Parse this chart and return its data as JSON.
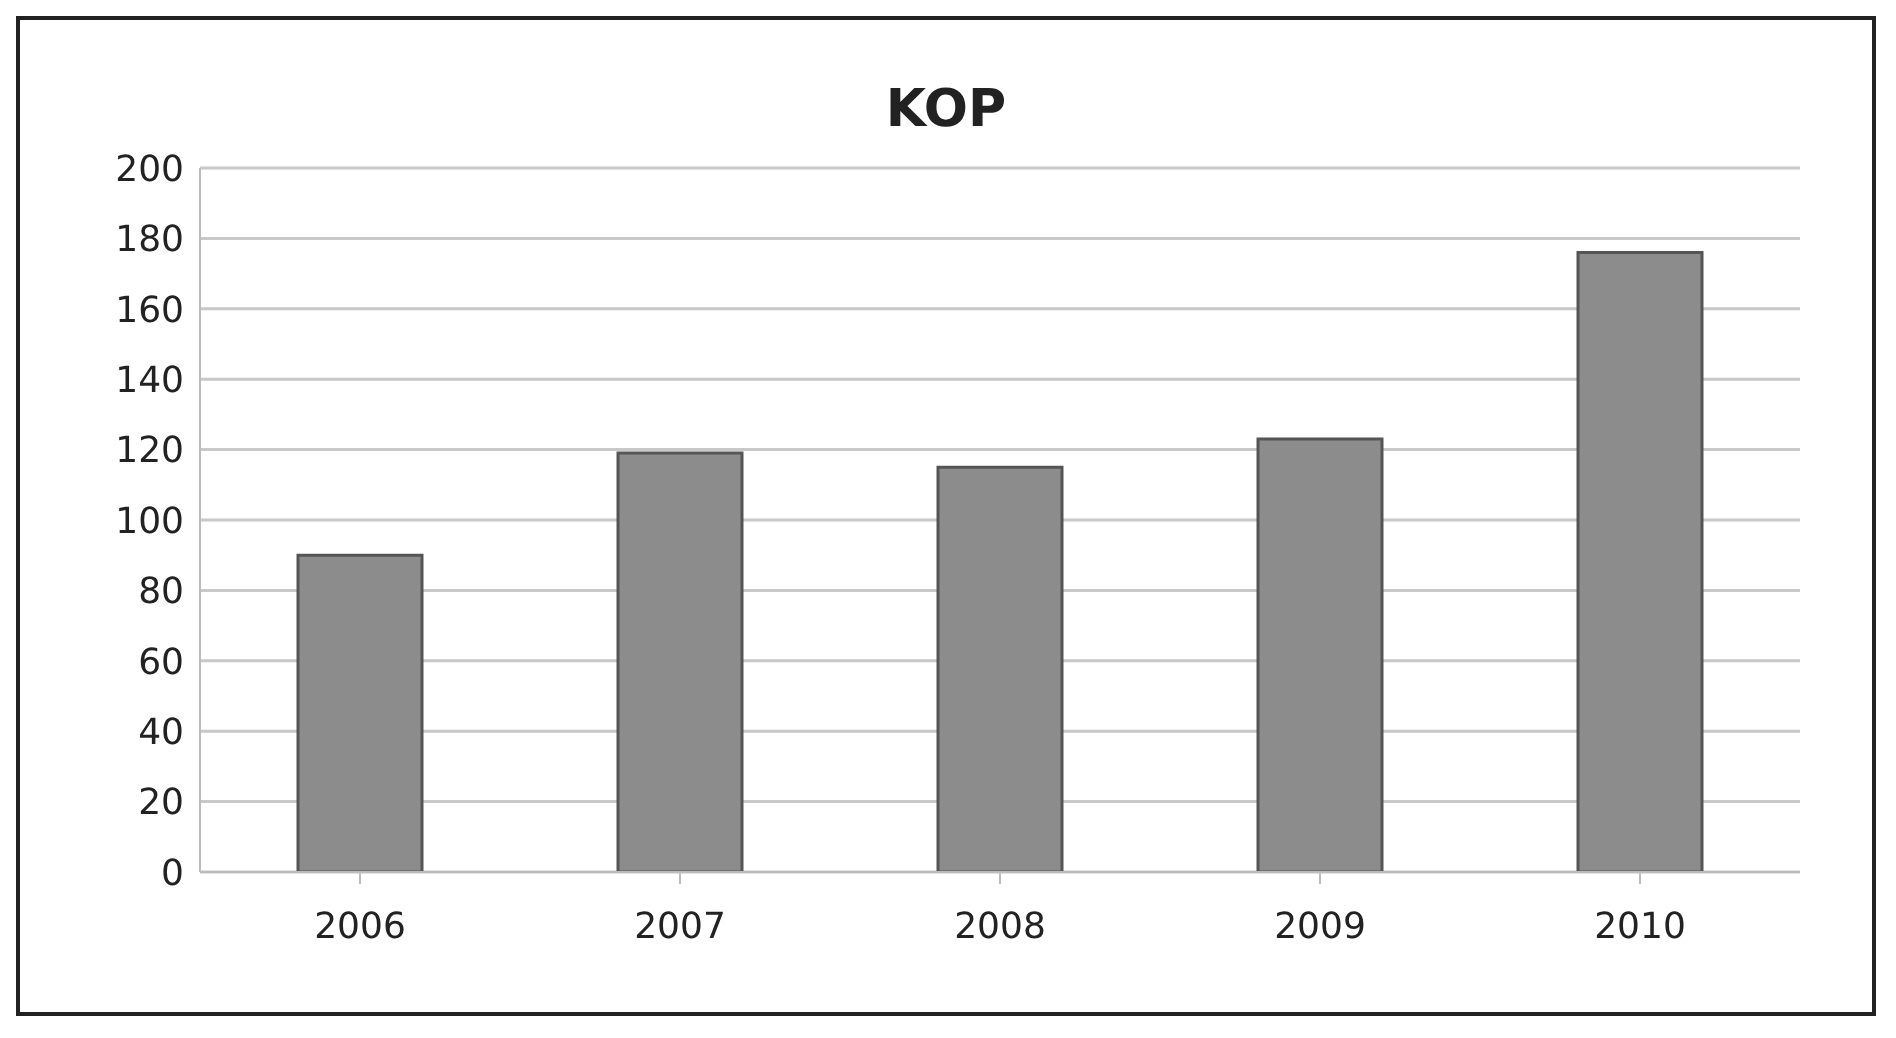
{
  "chart_data": {
    "type": "bar",
    "title": "KOP",
    "categories": [
      "2006",
      "2007",
      "2008",
      "2009",
      "2010"
    ],
    "values": [
      90,
      119,
      115,
      123,
      176
    ],
    "color": "#8c8c8c",
    "ylim": [
      0,
      200
    ],
    "yticks": [
      0,
      20,
      40,
      60,
      80,
      100,
      120,
      140,
      160,
      180,
      200
    ],
    "grid": "y"
  }
}
